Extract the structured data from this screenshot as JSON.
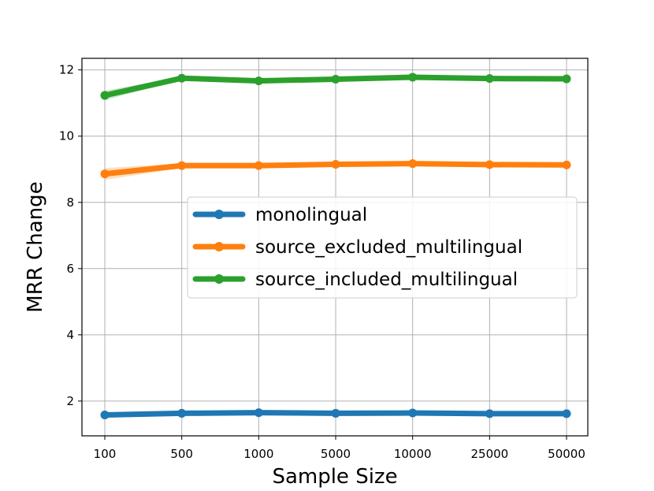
{
  "chart_data": {
    "type": "line",
    "xlabel": "Sample Size",
    "ylabel": "MRR Change",
    "categories": [
      "100",
      "500",
      "1000",
      "5000",
      "10000",
      "25000",
      "50000"
    ],
    "ylim": [
      0.95,
      12.35
    ],
    "yticks": [
      2,
      4,
      6,
      8,
      10,
      12
    ],
    "grid": true,
    "legend_position": "center-right",
    "series": [
      {
        "name": "monolingual",
        "color": "#1f77b4",
        "values": [
          1.58,
          1.63,
          1.65,
          1.63,
          1.64,
          1.62,
          1.62
        ],
        "band": [
          0.03,
          0.03,
          0.03,
          0.03,
          0.03,
          0.03,
          0.03
        ]
      },
      {
        "name": "source_excluded_multilingual",
        "color": "#ff7f0e",
        "values": [
          8.86,
          9.11,
          9.11,
          9.15,
          9.17,
          9.14,
          9.13
        ],
        "band": [
          0.18,
          0.07,
          0.08,
          0.05,
          0.04,
          0.04,
          0.04
        ]
      },
      {
        "name": "source_included_multilingual",
        "color": "#2ca02c",
        "values": [
          11.23,
          11.75,
          11.67,
          11.72,
          11.78,
          11.74,
          11.73
        ],
        "band": [
          0.14,
          0.05,
          0.08,
          0.04,
          0.03,
          0.03,
          0.03
        ]
      }
    ]
  }
}
